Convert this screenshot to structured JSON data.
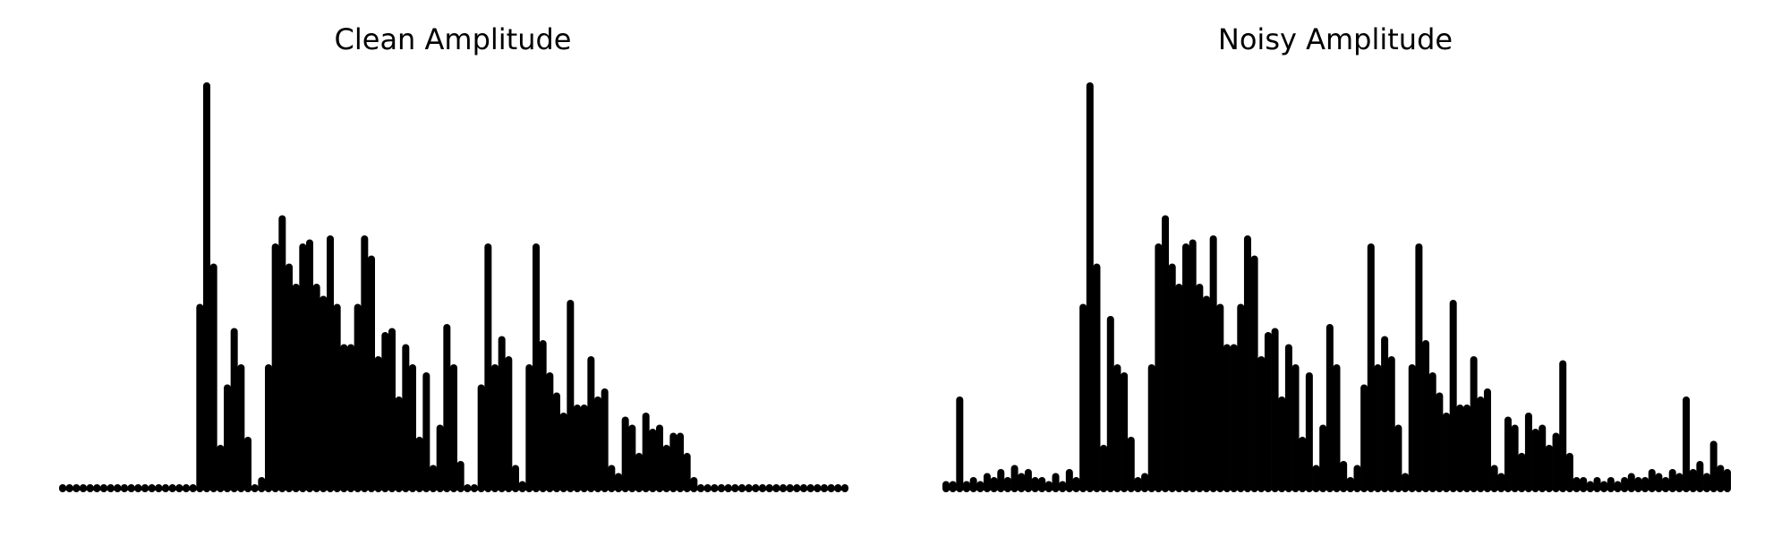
{
  "chart_data": [
    {
      "type": "stem",
      "title": "Clean Amplitude",
      "color": "#000000",
      "values": [
        0,
        0,
        0,
        0,
        0,
        0,
        0,
        0,
        0,
        0,
        0,
        0,
        0,
        0,
        0,
        0,
        0,
        0,
        0,
        0,
        0.45,
        1.0,
        0.55,
        0.1,
        0.25,
        0.39,
        0.3,
        0.12,
        0,
        0.02,
        0.3,
        0.6,
        0.67,
        0.55,
        0.5,
        0.6,
        0.61,
        0.5,
        0.47,
        0.62,
        0.45,
        0.35,
        0.35,
        0.45,
        0.62,
        0.57,
        0.32,
        0.38,
        0.39,
        0.22,
        0.35,
        0.3,
        0.12,
        0.28,
        0.05,
        0.15,
        0.4,
        0.3,
        0.06,
        0,
        0,
        0.25,
        0.6,
        0.3,
        0.37,
        0.32,
        0.05,
        0.01,
        0.3,
        0.6,
        0.36,
        0.28,
        0.23,
        0.18,
        0.46,
        0.2,
        0.2,
        0.32,
        0.22,
        0.24,
        0.05,
        0.03,
        0.17,
        0.15,
        0.08,
        0.18,
        0.14,
        0.15,
        0.1,
        0.13,
        0.13,
        0.08,
        0.02,
        0,
        0,
        0,
        0,
        0,
        0,
        0,
        0,
        0,
        0,
        0,
        0,
        0,
        0,
        0,
        0,
        0,
        0,
        0,
        0,
        0,
        0
      ]
    },
    {
      "type": "stem",
      "title": "Noisy Amplitude",
      "color": "#000000",
      "values": [
        0.01,
        0.01,
        0.22,
        0.01,
        0.02,
        0.01,
        0.03,
        0.02,
        0.04,
        0.02,
        0.05,
        0.03,
        0.04,
        0.02,
        0.02,
        0.01,
        0.03,
        0.01,
        0.04,
        0.02,
        0.45,
        1.0,
        0.55,
        0.1,
        0.42,
        0.3,
        0.28,
        0.12,
        0.02,
        0.03,
        0.3,
        0.6,
        0.67,
        0.55,
        0.5,
        0.6,
        0.61,
        0.5,
        0.47,
        0.62,
        0.45,
        0.35,
        0.35,
        0.45,
        0.62,
        0.57,
        0.32,
        0.38,
        0.39,
        0.22,
        0.35,
        0.3,
        0.12,
        0.28,
        0.05,
        0.15,
        0.4,
        0.3,
        0.06,
        0.02,
        0.05,
        0.25,
        0.6,
        0.3,
        0.37,
        0.32,
        0.15,
        0.03,
        0.3,
        0.6,
        0.36,
        0.28,
        0.23,
        0.18,
        0.46,
        0.2,
        0.2,
        0.32,
        0.22,
        0.24,
        0.05,
        0.03,
        0.17,
        0.15,
        0.08,
        0.18,
        0.14,
        0.15,
        0.1,
        0.13,
        0.31,
        0.08,
        0.02,
        0.02,
        0.01,
        0.02,
        0.01,
        0.02,
        0.01,
        0.02,
        0.03,
        0.02,
        0.02,
        0.04,
        0.03,
        0.02,
        0.04,
        0.03,
        0.22,
        0.04,
        0.06,
        0.03,
        0.11,
        0.05,
        0.04
      ]
    }
  ]
}
